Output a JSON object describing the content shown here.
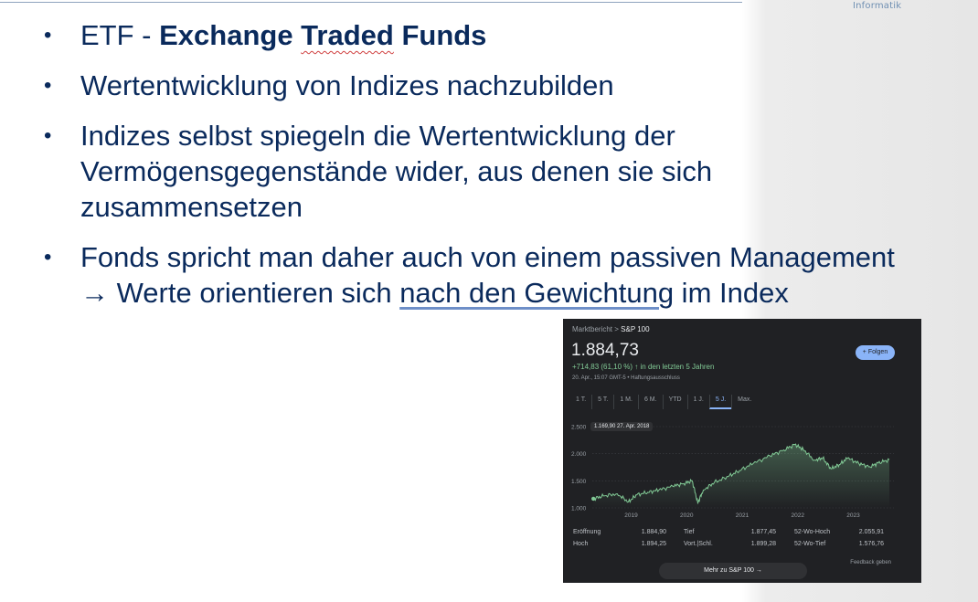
{
  "header": {
    "brand": "Informatik"
  },
  "slide": {
    "bullet": "•",
    "b1_plain": "ETF - ",
    "b1_bold_a": "Exchange ",
    "b1_bold_b": "Traded",
    "b1_bold_c": " Funds",
    "b2": "Wertentwicklung von Indizes nachzubilden",
    "b3_l1": "Indizes selbst spiegeln die Wertentwicklung der",
    "b3_l2": "Vermögensgegenstände wider, aus denen sie sich",
    "b3_l3": "zusammensetzen",
    "b4_l1": "Fonds spricht man daher auch von einem passiven Management",
    "b4_l2a": "→ Werte orientieren sich ",
    "b4_l2b": "nach den Gewichtung",
    "b4_l2c": " im Index"
  },
  "widget": {
    "breadcrumb_a": "Marktbericht > ",
    "breadcrumb_b": "S&P 100",
    "price": "1.884,73",
    "change": "+714,83 (61,10 %)",
    "change_suffix": "↑ in den letzten 5 Jahren",
    "timestamp": "20. Apr., 15:07 GMT-5 • Haftungsausschluss",
    "follow_label": "+  Folgen",
    "tabs": [
      "1 T.",
      "5 T.",
      "1 M.",
      "6 M.",
      "YTD",
      "1 J.",
      "5 J.",
      "Max."
    ],
    "active_tab": "5 J.",
    "tooltip": "1.169,90  27. Apr. 2018",
    "stats": [
      {
        "label": "Eröffnung",
        "value": "1.884,90"
      },
      {
        "label": "Hoch",
        "value": "1.894,25"
      },
      {
        "label": "Tief",
        "value": "1.877,45"
      },
      {
        "label": "Vort.|Schl.",
        "value": "1.899,28"
      },
      {
        "label": "52-Wo-Hoch",
        "value": "2.055,91"
      },
      {
        "label": "52-Wo-Tief",
        "value": "1.576,76"
      }
    ],
    "feedback": "Feedback geben",
    "more_button": "Mehr zu S&P 100  →"
  },
  "chart_data": {
    "type": "line",
    "title": "",
    "xlabel": "",
    "ylabel": "",
    "yticks": [
      "2.500",
      "2.000",
      "1.500",
      "1.000"
    ],
    "xticks": [
      "2019",
      "2020",
      "2021",
      "2022",
      "2023"
    ],
    "ylim": [
      1000,
      2500
    ],
    "x": [
      2018.32,
      2018.5,
      2018.75,
      2018.95,
      2019.1,
      2019.3,
      2019.5,
      2019.75,
      2019.95,
      2020.1,
      2020.2,
      2020.3,
      2020.5,
      2020.75,
      2020.95,
      2021.2,
      2021.5,
      2021.75,
      2021.95,
      2022.1,
      2022.3,
      2022.45,
      2022.6,
      2022.75,
      2022.9,
      2023.1,
      2023.3,
      2023.45,
      2023.65
    ],
    "values": [
      1170,
      1220,
      1260,
      1110,
      1240,
      1290,
      1330,
      1400,
      1450,
      1500,
      1090,
      1330,
      1470,
      1580,
      1690,
      1820,
      1960,
      2070,
      2170,
      2080,
      1880,
      1920,
      1720,
      1800,
      1920,
      1820,
      1760,
      1830,
      1890
    ],
    "grid": true,
    "legend": "none"
  }
}
